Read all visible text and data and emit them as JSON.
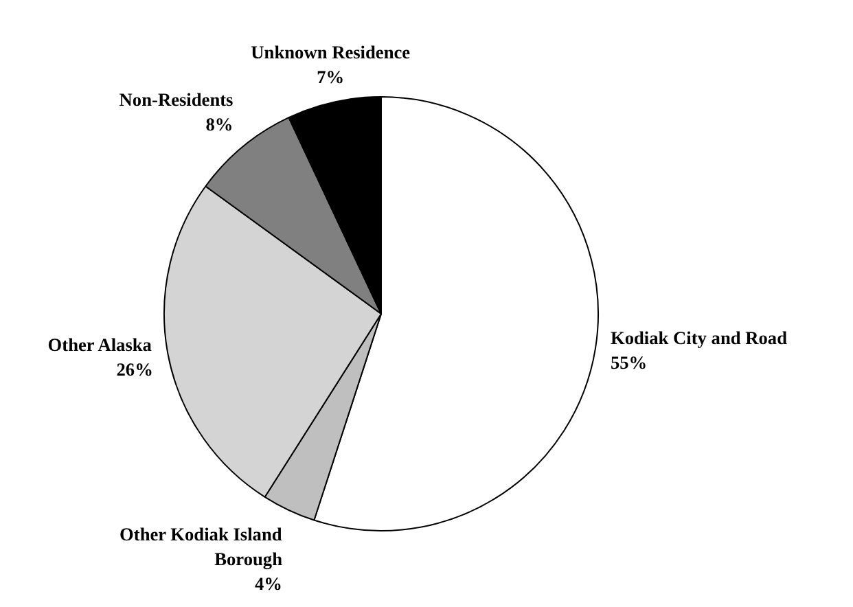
{
  "chart_data": {
    "type": "pie",
    "categories": [
      "Kodiak City and Road",
      "Other Kodiak Island Borough",
      "Other Alaska",
      "Non-Residents",
      "Unknown Residence"
    ],
    "values": [
      55,
      4,
      26,
      8,
      7
    ],
    "colors": [
      "#ffffff",
      "#bfbfbf",
      "#d4d4d4",
      "#808080",
      "#000000"
    ],
    "value_labels": [
      "55%",
      "4%",
      "26%",
      "8%",
      "7%"
    ]
  }
}
